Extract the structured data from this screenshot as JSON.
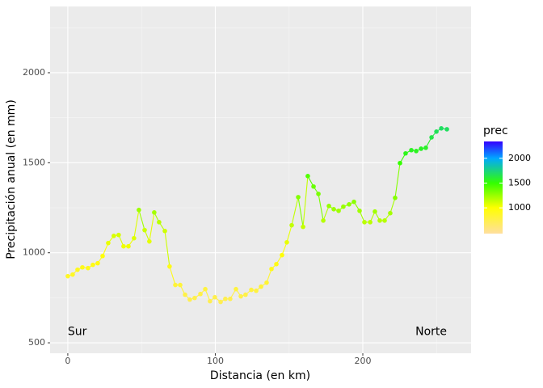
{
  "chart_data": {
    "type": "line",
    "x_label": "Distancia (en km)",
    "y_label": "Precipitación anual (en mm)",
    "x": [
      0,
      3.3,
      6.6,
      9.9,
      13.7,
      17,
      20.3,
      23.6,
      27.4,
      31.2,
      34.5,
      37.8,
      41.1,
      44.9,
      48.2,
      52.1,
      55.3,
      58.6,
      61.9,
      65.8,
      69,
      72.9,
      76.2,
      79.5,
      82.7,
      86,
      89.9,
      93.2,
      96.4,
      99.7,
      103.6,
      106.8,
      110.1,
      114,
      117.3,
      120.5,
      124.4,
      127.7,
      131,
      134.8,
      138.1,
      141.4,
      145.2,
      148.5,
      151.8,
      156.2,
      159.5,
      162.7,
      166.6,
      169.9,
      173.2,
      177,
      180.3,
      183.6,
      186.8,
      190.7,
      194,
      197.8,
      201.1,
      205,
      208.2,
      211.5,
      214.8,
      218.6,
      221.9,
      225.2,
      229,
      232.9,
      236.2,
      239.5,
      242.7,
      246.6,
      249.9,
      253.2,
      257
    ],
    "values": [
      870,
      879,
      906,
      919,
      915,
      933,
      942,
      982,
      1054,
      1094,
      1099,
      1036,
      1036,
      1081,
      1238,
      1126,
      1063,
      1224,
      1170,
      1121,
      924,
      821,
      821,
      767,
      740,
      749,
      771,
      798,
      731,
      753,
      727,
      744,
      744,
      798,
      758,
      767,
      794,
      789,
      812,
      834,
      910,
      937,
      987,
      1058,
      1153,
      1309,
      1144,
      1426,
      1368,
      1327,
      1179,
      1260,
      1242,
      1233,
      1256,
      1269,
      1283,
      1233,
      1170,
      1170,
      1229,
      1179,
      1179,
      1220,
      1305,
      1498,
      1552,
      1570,
      1565,
      1578,
      1583,
      1641,
      1673,
      1691,
      1686
    ],
    "xlim": [
      -12,
      273.4
    ],
    "ylim": [
      442,
      2368
    ],
    "xticks": [
      0,
      100,
      200
    ],
    "yticks": [
      500,
      1000,
      1500,
      2000
    ],
    "xminor": [
      50,
      150,
      250
    ],
    "yminor": [
      750,
      1250,
      1750,
      2250
    ],
    "grid": true,
    "legend": {
      "title": "prec",
      "position": "right",
      "lim": [
        480,
        2340
      ],
      "ticks": [
        1000,
        1500,
        2000
      ],
      "colors": [
        {
          "value": 480,
          "color": "#ffdf9f"
        },
        {
          "value": 1000,
          "color": "#ffff00"
        },
        {
          "value": 1500,
          "color": "#33ff00"
        },
        {
          "value": 2000,
          "color": "#00a8ff"
        },
        {
          "value": 2340,
          "color": "#3300ff"
        }
      ]
    },
    "annotations": [
      {
        "text": "Sur",
        "x": 0,
        "y": 560,
        "align": "start"
      },
      {
        "text": "Norte",
        "x": 257,
        "y": 560,
        "align": "end"
      }
    ]
  }
}
